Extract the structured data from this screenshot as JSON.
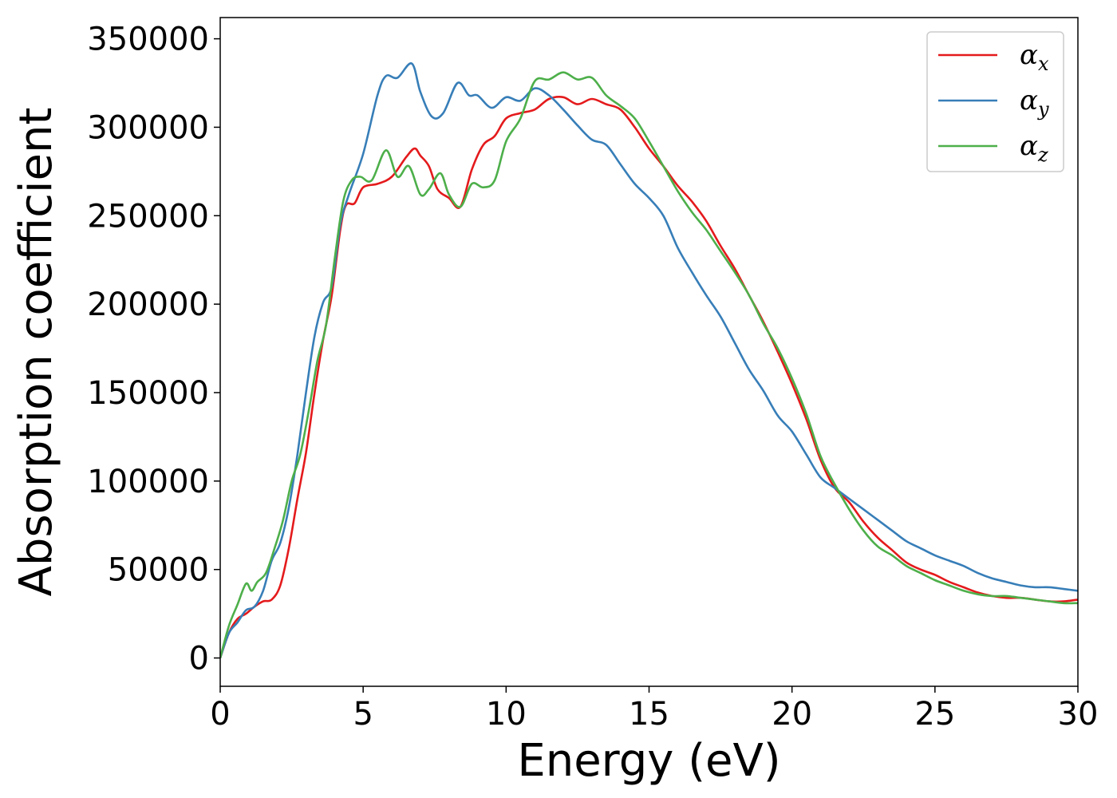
{
  "chart_data": {
    "type": "line",
    "title": "",
    "xlabel": "Energy (eV)",
    "ylabel": "Absorption coefficient",
    "xlim": [
      0,
      30
    ],
    "ylim": [
      -16000,
      362000
    ],
    "xticks": [
      0,
      5,
      10,
      15,
      20,
      25,
      30
    ],
    "yticks": [
      0,
      50000,
      100000,
      150000,
      200000,
      250000,
      300000,
      350000
    ],
    "grid": false,
    "legend": "top-right",
    "series": [
      {
        "name": "α",
        "subscript": "x",
        "color": "#e41a1c",
        "x": [
          0,
          0.3,
          0.6,
          0.9,
          1.2,
          1.5,
          1.8,
          2.1,
          2.4,
          2.7,
          3.0,
          3.3,
          3.6,
          3.9,
          4.2,
          4.4,
          4.7,
          5.0,
          5.5,
          6.0,
          6.5,
          6.8,
          7.0,
          7.3,
          7.6,
          8.0,
          8.4,
          8.8,
          9.2,
          9.6,
          10.0,
          10.5,
          11.0,
          11.5,
          12.0,
          12.5,
          13.0,
          13.5,
          14.0,
          14.5,
          15.0,
          15.5,
          16.0,
          16.5,
          17.0,
          17.5,
          18.0,
          18.5,
          19.0,
          19.5,
          20.0,
          20.5,
          21.0,
          21.5,
          22.0,
          22.5,
          23.0,
          23.5,
          24.0,
          24.5,
          25.0,
          25.5,
          26.0,
          26.5,
          27.0,
          27.5,
          28.0,
          28.5,
          29.0,
          29.5,
          30.0
        ],
        "y": [
          0,
          14000,
          22000,
          25000,
          29000,
          32000,
          33000,
          41000,
          62000,
          90000,
          116000,
          150000,
          180000,
          205000,
          242000,
          256000,
          257000,
          266000,
          268000,
          272000,
          283000,
          288000,
          284000,
          278000,
          265000,
          260000,
          255000,
          276000,
          290000,
          295000,
          305000,
          308000,
          310000,
          316000,
          317000,
          313000,
          316000,
          313000,
          310000,
          300000,
          288000,
          278000,
          267000,
          258000,
          247000,
          233000,
          220000,
          205000,
          190000,
          173000,
          155000,
          135000,
          112000,
          96000,
          88000,
          77000,
          68000,
          61000,
          54000,
          50000,
          47000,
          43000,
          40000,
          37000,
          35000,
          34000,
          34000,
          33000,
          32000,
          32000,
          33000
        ]
      },
      {
        "name": "α",
        "subscript": "y",
        "color": "#377eb8",
        "x": [
          0,
          0.3,
          0.6,
          0.9,
          1.2,
          1.5,
          1.8,
          2.1,
          2.4,
          2.7,
          3.0,
          3.3,
          3.6,
          3.9,
          4.2,
          4.5,
          5.0,
          5.5,
          5.8,
          6.2,
          6.7,
          7.0,
          7.4,
          7.8,
          8.3,
          8.7,
          9.0,
          9.5,
          10.0,
          10.5,
          11.0,
          11.5,
          12.0,
          12.5,
          13.0,
          13.5,
          14.0,
          14.5,
          15.0,
          15.5,
          16.0,
          16.5,
          17.0,
          17.5,
          18.0,
          18.5,
          19.0,
          19.5,
          20.0,
          20.5,
          21.0,
          21.5,
          22.0,
          22.5,
          23.0,
          23.5,
          24.0,
          24.5,
          25.0,
          25.5,
          26.0,
          26.5,
          27.0,
          27.5,
          28.0,
          28.5,
          29.0,
          29.5,
          30.0
        ],
        "y": [
          0,
          14000,
          20000,
          27000,
          29000,
          38000,
          55000,
          65000,
          85000,
          115000,
          150000,
          182000,
          201000,
          210000,
          245000,
          262000,
          285000,
          318000,
          329000,
          328000,
          336000,
          320000,
          306000,
          308000,
          325000,
          318000,
          318000,
          311000,
          317000,
          315000,
          322000,
          318000,
          310000,
          301000,
          293000,
          290000,
          279000,
          268000,
          260000,
          250000,
          232000,
          218000,
          205000,
          193000,
          178000,
          163000,
          151000,
          137000,
          128000,
          115000,
          102000,
          96000,
          90000,
          84000,
          78000,
          72000,
          66000,
          62000,
          58000,
          55000,
          52000,
          48000,
          45000,
          43000,
          41000,
          40000,
          40000,
          39000,
          38000
        ]
      },
      {
        "name": "α",
        "subscript": "z",
        "color": "#4daf4a",
        "x": [
          0,
          0.3,
          0.6,
          0.9,
          1.1,
          1.3,
          1.6,
          1.9,
          2.2,
          2.5,
          2.8,
          3.1,
          3.4,
          3.7,
          4.0,
          4.3,
          4.6,
          4.9,
          5.3,
          5.8,
          6.2,
          6.6,
          7.0,
          7.3,
          7.7,
          8.0,
          8.4,
          8.8,
          9.2,
          9.6,
          10.0,
          10.5,
          11.0,
          11.5,
          12.0,
          12.5,
          13.0,
          13.5,
          14.0,
          14.5,
          15.0,
          15.5,
          16.0,
          16.5,
          17.0,
          17.5,
          18.0,
          18.5,
          19.0,
          19.5,
          20.0,
          20.5,
          21.0,
          21.5,
          22.0,
          22.5,
          23.0,
          23.5,
          24.0,
          24.5,
          25.0,
          25.5,
          26.0,
          26.5,
          27.0,
          27.5,
          28.0,
          28.5,
          29.0,
          29.5,
          30.0
        ],
        "y": [
          0,
          18000,
          30000,
          42000,
          38000,
          43000,
          48000,
          62000,
          78000,
          100000,
          115000,
          140000,
          168000,
          188000,
          225000,
          258000,
          270000,
          272000,
          270000,
          287000,
          272000,
          278000,
          262000,
          265000,
          274000,
          262000,
          255000,
          268000,
          266000,
          270000,
          292000,
          305000,
          326000,
          327000,
          331000,
          327000,
          328000,
          318000,
          312000,
          305000,
          292000,
          278000,
          264000,
          252000,
          242000,
          230000,
          218000,
          205000,
          189000,
          175000,
          158000,
          138000,
          114000,
          98000,
          84000,
          72000,
          63000,
          58000,
          52000,
          48000,
          44000,
          41000,
          38000,
          36000,
          35000,
          35000,
          34000,
          33000,
          32000,
          31000,
          31000
        ]
      }
    ]
  }
}
